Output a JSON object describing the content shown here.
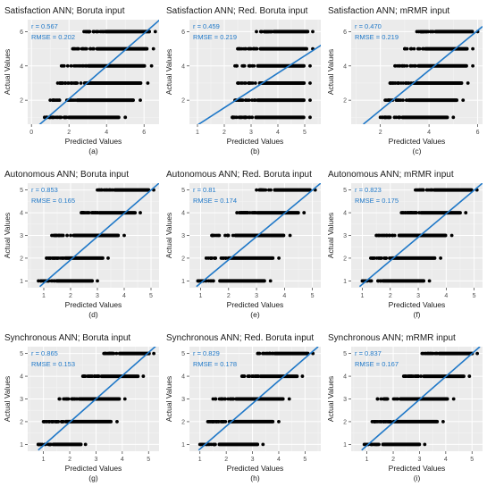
{
  "colors": {
    "panel_bg": "#ebebeb",
    "grid_major": "#ffffff",
    "point": "#000000",
    "fit_line": "#1f78c8",
    "stats_text": "#1f78c8"
  },
  "chart_data": [
    {
      "type": "scatter",
      "title": "Satisfaction ANN; Boruta input",
      "xlabel": "Predicted Values",
      "ylabel": "Actual Values",
      "caption": "(a)",
      "stats": {
        "r": "r = 0.567",
        "rmse": "RMSE = 0.202"
      },
      "xlim": [
        -0.2,
        6.8
      ],
      "ylim": [
        0.6,
        6.7
      ],
      "xticks": [
        0,
        2,
        4,
        6
      ],
      "yticks": [
        2,
        4,
        6
      ],
      "fit_line": [
        [
          0.4,
          0.55
        ],
        [
          6.9,
          6.75
        ]
      ],
      "point_rows": [
        {
          "y": 1,
          "x_range": [
            0.7,
            5.0
          ]
        },
        {
          "y": 2,
          "x_range": [
            1.0,
            5.8
          ]
        },
        {
          "y": 3,
          "x_range": [
            1.4,
            6.2
          ]
        },
        {
          "y": 4,
          "x_range": [
            1.6,
            6.4
          ]
        },
        {
          "y": 5,
          "x_range": [
            2.2,
            6.5
          ]
        },
        {
          "y": 6,
          "x_range": [
            2.8,
            6.6
          ]
        }
      ]
    },
    {
      "type": "scatter",
      "title": "Satisfaction ANN; Red. Boruta input",
      "xlabel": "Predicted Values",
      "ylabel": "Actual Values",
      "caption": "(b)",
      "stats": {
        "r": "r = 0.459",
        "rmse": "RMSE = 0.219"
      },
      "xlim": [
        0.7,
        5.6
      ],
      "ylim": [
        0.6,
        6.7
      ],
      "xticks": [
        1,
        2,
        3,
        4,
        5
      ],
      "yticks": [
        2,
        4,
        6
      ],
      "fit_line": [
        [
          1.0,
          0.55
        ],
        [
          5.7,
          5.3
        ]
      ],
      "point_rows": [
        {
          "y": 1,
          "x_range": [
            2.3,
            5.2
          ]
        },
        {
          "y": 2,
          "x_range": [
            2.4,
            5.2
          ]
        },
        {
          "y": 3,
          "x_range": [
            2.5,
            5.2
          ]
        },
        {
          "y": 4,
          "x_range": [
            2.4,
            5.2
          ]
        },
        {
          "y": 5,
          "x_range": [
            2.5,
            5.3
          ]
        },
        {
          "y": 6,
          "x_range": [
            3.2,
            5.3
          ]
        }
      ]
    },
    {
      "type": "scatter",
      "title": "Satisfaction ANN; mRMR input",
      "xlabel": "Predicted Values",
      "ylabel": "Actual Values",
      "caption": "(c)",
      "stats": {
        "r": "r = 0.470",
        "rmse": "RMSE = 0.219"
      },
      "xlim": [
        0.8,
        6.2
      ],
      "ylim": [
        0.6,
        6.7
      ],
      "xticks": [
        2,
        4,
        6
      ],
      "yticks": [
        2,
        4,
        6
      ],
      "fit_line": [
        [
          1.3,
          0.6
        ],
        [
          6.2,
          6.3
        ]
      ],
      "point_rows": [
        {
          "y": 1,
          "x_range": [
            2.0,
            5.0
          ]
        },
        {
          "y": 2,
          "x_range": [
            2.2,
            5.4
          ]
        },
        {
          "y": 3,
          "x_range": [
            2.4,
            5.6
          ]
        },
        {
          "y": 4,
          "x_range": [
            2.6,
            5.8
          ]
        },
        {
          "y": 5,
          "x_range": [
            3.0,
            5.8
          ]
        },
        {
          "y": 6,
          "x_range": [
            3.5,
            6.0
          ]
        }
      ]
    },
    {
      "type": "scatter",
      "title": "Autonomous ANN; Boruta input",
      "xlabel": "Predicted Values",
      "ylabel": "Actual Values",
      "caption": "(d)",
      "stats": {
        "r": "r = 0.853",
        "rmse": "RMSE = 0.165"
      },
      "xlim": [
        0.4,
        5.3
      ],
      "ylim": [
        0.7,
        5.3
      ],
      "xticks": [
        1,
        2,
        3,
        4,
        5
      ],
      "yticks": [
        1,
        2,
        3,
        4,
        5
      ],
      "fit_line": [
        [
          0.85,
          0.75
        ],
        [
          5.3,
          5.3
        ]
      ],
      "point_rows": [
        {
          "y": 1,
          "x_range": [
            0.8,
            3.0
          ]
        },
        {
          "y": 2,
          "x_range": [
            1.1,
            3.4
          ]
        },
        {
          "y": 3,
          "x_range": [
            1.3,
            4.0
          ]
        },
        {
          "y": 4,
          "x_range": [
            2.4,
            4.6
          ]
        },
        {
          "y": 5,
          "x_range": [
            3.0,
            5.1
          ]
        }
      ]
    },
    {
      "type": "scatter",
      "title": "Autonomous ANN; Red. Boruta input",
      "xlabel": "Predicted Values",
      "ylabel": "Actual Values",
      "caption": "(e)",
      "stats": {
        "r": "r = 0.81",
        "rmse": "RMSE = 0.174"
      },
      "xlim": [
        0.6,
        5.3
      ],
      "ylim": [
        0.7,
        5.3
      ],
      "xticks": [
        1,
        2,
        3,
        4,
        5
      ],
      "yticks": [
        1,
        2,
        3,
        4,
        5
      ],
      "fit_line": [
        [
          0.85,
          0.75
        ],
        [
          5.3,
          5.3
        ]
      ],
      "point_rows": [
        {
          "y": 1,
          "x_range": [
            0.9,
            3.5
          ]
        },
        {
          "y": 2,
          "x_range": [
            1.2,
            3.8
          ]
        },
        {
          "y": 3,
          "x_range": [
            1.4,
            4.2
          ]
        },
        {
          "y": 4,
          "x_range": [
            2.3,
            4.7
          ]
        },
        {
          "y": 5,
          "x_range": [
            3.0,
            5.1
          ]
        }
      ]
    },
    {
      "type": "scatter",
      "title": "Autonomous ANN; mRMR input",
      "xlabel": "Predicted Values",
      "ylabel": "Actual Values",
      "caption": "(f)",
      "stats": {
        "r": "r = 0.823",
        "rmse": "RMSE = 0.175"
      },
      "xlim": [
        0.6,
        5.3
      ],
      "ylim": [
        0.7,
        5.3
      ],
      "xticks": [
        1,
        2,
        3,
        4,
        5
      ],
      "yticks": [
        1,
        2,
        3,
        4,
        5
      ],
      "fit_line": [
        [
          0.9,
          0.75
        ],
        [
          5.3,
          5.3
        ]
      ],
      "point_rows": [
        {
          "y": 1,
          "x_range": [
            1.0,
            3.4
          ]
        },
        {
          "y": 2,
          "x_range": [
            1.3,
            3.8
          ]
        },
        {
          "y": 3,
          "x_range": [
            1.5,
            4.2
          ]
        },
        {
          "y": 4,
          "x_range": [
            2.4,
            4.7
          ]
        },
        {
          "y": 5,
          "x_range": [
            2.9,
            5.1
          ]
        }
      ]
    },
    {
      "type": "scatter",
      "title": "Synchronous ANN; Boruta input",
      "xlabel": "Predicted Values",
      "ylabel": "Actual Values",
      "caption": "(g)",
      "stats": {
        "r": "r = 0.865",
        "rmse": "RMSE = 0.153"
      },
      "xlim": [
        0.4,
        5.4
      ],
      "ylim": [
        0.7,
        5.3
      ],
      "xticks": [
        1,
        2,
        3,
        4,
        5
      ],
      "yticks": [
        1,
        2,
        3,
        4,
        5
      ],
      "fit_line": [
        [
          0.8,
          0.75
        ],
        [
          5.3,
          5.35
        ]
      ],
      "point_rows": [
        {
          "y": 1,
          "x_range": [
            0.8,
            2.6
          ]
        },
        {
          "y": 2,
          "x_range": [
            1.0,
            3.8
          ]
        },
        {
          "y": 3,
          "x_range": [
            1.6,
            4.1
          ]
        },
        {
          "y": 4,
          "x_range": [
            2.5,
            4.8
          ]
        },
        {
          "y": 5,
          "x_range": [
            3.3,
            5.2
          ]
        }
      ]
    },
    {
      "type": "scatter",
      "title": "Synchronous ANN; Red. Boruta input",
      "xlabel": "Predicted Values",
      "ylabel": "Actual Values",
      "caption": "(h)",
      "stats": {
        "r": "r = 0.829",
        "rmse": "RMSE = 0.178"
      },
      "xlim": [
        0.6,
        5.6
      ],
      "ylim": [
        0.7,
        5.3
      ],
      "xticks": [
        1,
        2,
        3,
        4,
        5
      ],
      "yticks": [
        1,
        2,
        3,
        4,
        5
      ],
      "fit_line": [
        [
          0.95,
          0.75
        ],
        [
          5.5,
          5.3
        ]
      ],
      "point_rows": [
        {
          "y": 1,
          "x_range": [
            1.0,
            3.4
          ]
        },
        {
          "y": 2,
          "x_range": [
            1.3,
            4.0
          ]
        },
        {
          "y": 3,
          "x_range": [
            1.5,
            4.4
          ]
        },
        {
          "y": 4,
          "x_range": [
            2.6,
            4.9
          ]
        },
        {
          "y": 5,
          "x_range": [
            3.2,
            5.3
          ]
        }
      ]
    },
    {
      "type": "scatter",
      "title": "Synchronous ANN; mRMR input",
      "xlabel": "Predicted Values",
      "ylabel": "Actual Values",
      "caption": "(i)",
      "stats": {
        "r": "r = 0.837",
        "rmse": "RMSE = 0.167"
      },
      "xlim": [
        0.4,
        5.4
      ],
      "ylim": [
        0.7,
        5.3
      ],
      "xticks": [
        1,
        2,
        3,
        4,
        5
      ],
      "yticks": [
        1,
        2,
        3,
        4,
        5
      ],
      "fit_line": [
        [
          0.8,
          0.75
        ],
        [
          5.3,
          5.3
        ]
      ],
      "point_rows": [
        {
          "y": 1,
          "x_range": [
            0.9,
            3.2
          ]
        },
        {
          "y": 2,
          "x_range": [
            1.2,
            3.9
          ]
        },
        {
          "y": 3,
          "x_range": [
            1.4,
            4.3
          ]
        },
        {
          "y": 4,
          "x_range": [
            2.4,
            4.9
          ]
        },
        {
          "y": 5,
          "x_range": [
            3.1,
            5.2
          ]
        }
      ]
    }
  ]
}
